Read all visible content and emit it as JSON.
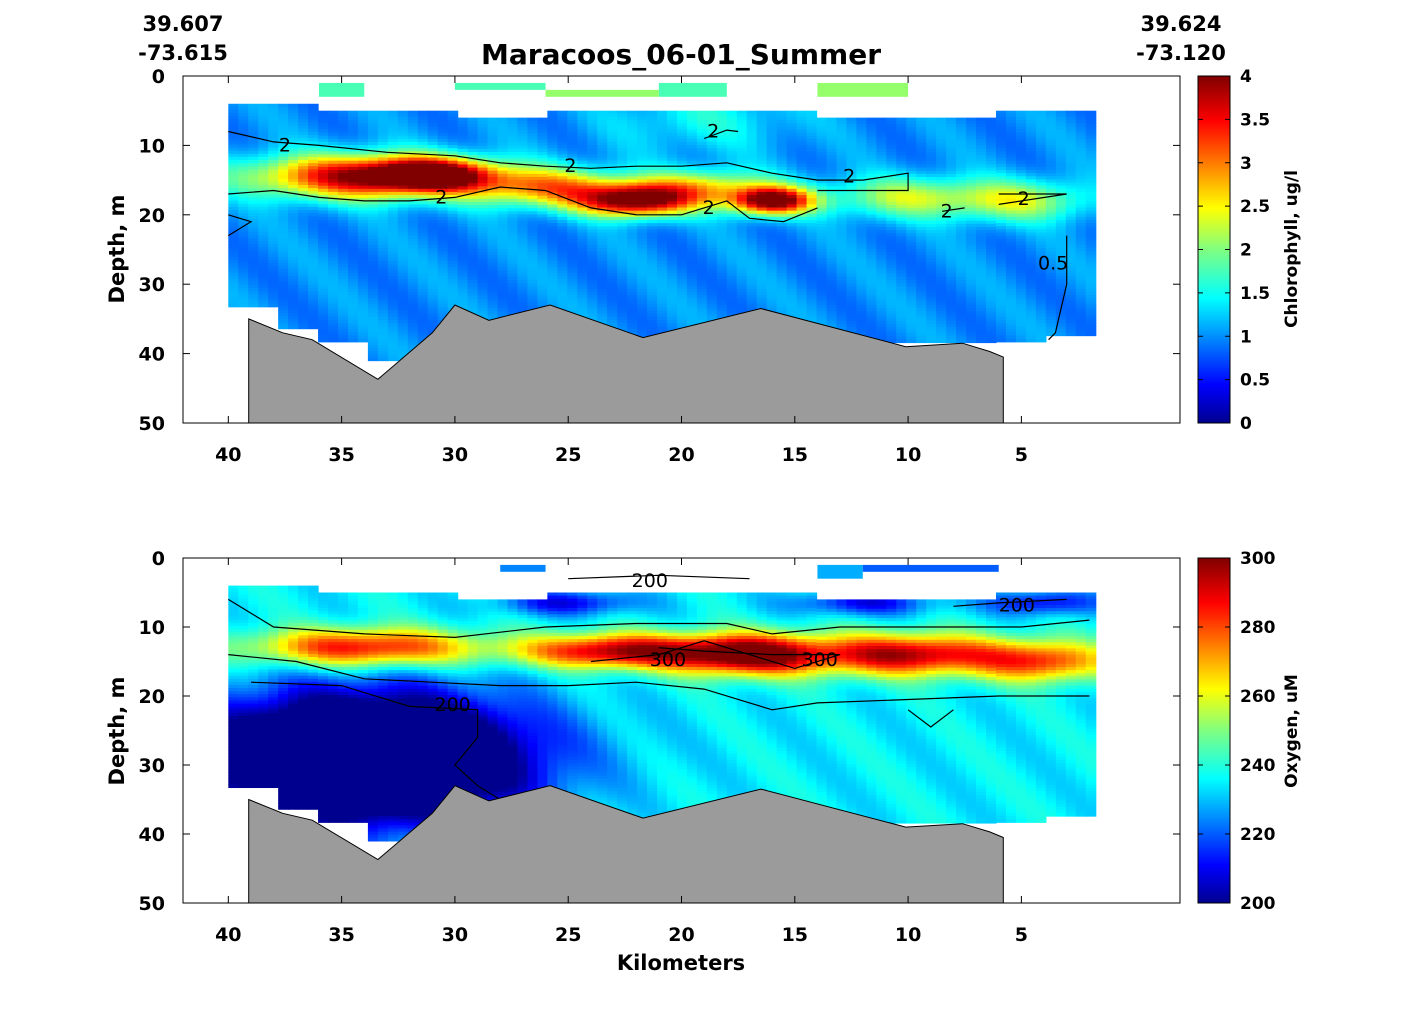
{
  "title": "Maracoos_06-01_Summer",
  "coords": {
    "left_lat": "39.607",
    "left_lon": "-73.615",
    "right_lat": "39.624",
    "right_lon": "-73.120"
  },
  "colors": {
    "bathymetry_fill": "#9b9b9b",
    "jet": [
      "#00008f",
      "#0000ff",
      "#0080ff",
      "#00ffff",
      "#80ff80",
      "#ffff00",
      "#ff8000",
      "#ff0000",
      "#800000"
    ]
  },
  "chart_data": [
    {
      "type": "heatmap",
      "xlabel": "",
      "ylabel": "Depth, m",
      "xlim": [
        42,
        -2
      ],
      "ylim": [
        0,
        50
      ],
      "x_reversed": true,
      "y_reversed": true,
      "xticks": [
        40,
        35,
        30,
        25,
        20,
        15,
        10,
        5
      ],
      "yticks": [
        0,
        10,
        20,
        30,
        40,
        50
      ],
      "colorbar": {
        "label": "Chlorophyll, ug/l",
        "range": [
          0,
          4
        ],
        "ticks": [
          "0",
          "0.5",
          "1",
          "1.5",
          "2",
          "2.5",
          "3",
          "3.5",
          "4"
        ]
      },
      "background_level": 0.25,
      "features": [
        {
          "x": 34,
          "depth": 14.5,
          "sx": 5,
          "sy": 3.2,
          "value": 0.7
        },
        {
          "x": 31,
          "depth": 14.2,
          "sx": 2.5,
          "sy": 2.2,
          "value": 0.6
        },
        {
          "x": 26,
          "depth": 16,
          "sx": 3.5,
          "sy": 2.8,
          "value": 0.45
        },
        {
          "x": 22,
          "depth": 18,
          "sx": 2.6,
          "sy": 2.3,
          "value": 0.75
        },
        {
          "x": 16,
          "depth": 18,
          "sx": 1.8,
          "sy": 2,
          "value": 0.8
        },
        {
          "x": 19,
          "depth": 16,
          "sx": 3,
          "sy": 2.5,
          "value": 0.35
        },
        {
          "x": 10,
          "depth": 17.5,
          "sx": 3.5,
          "sy": 3,
          "value": 0.3
        },
        {
          "x": 5,
          "depth": 18,
          "sx": 3,
          "sy": 3,
          "value": 0.3
        },
        {
          "x": 19,
          "depth": 6,
          "sx": 4,
          "sy": 5,
          "value": 0.12
        }
      ],
      "contours": [
        {
          "level": "2",
          "points": [
            [
              40,
              8
            ],
            [
              38,
              9.5
            ],
            [
              36,
              10
            ],
            [
              33,
              11
            ],
            [
              30,
              11.5
            ],
            [
              28,
              12.5
            ],
            [
              26,
              13
            ],
            [
              24,
              13.3
            ],
            [
              22,
              13
            ],
            [
              20,
              13
            ],
            [
              18,
              12.5
            ],
            [
              16,
              14
            ],
            [
              14,
              15
            ],
            [
              12,
              15
            ],
            [
              10,
              14
            ],
            [
              10,
              16.5
            ],
            [
              14,
              16.5
            ]
          ]
        },
        {
          "level": "2",
          "points": [
            [
              40,
              17
            ],
            [
              38,
              16.5
            ],
            [
              36,
              17.5
            ],
            [
              34,
              18
            ],
            [
              32,
              18
            ],
            [
              30,
              17.5
            ],
            [
              28,
              16
            ],
            [
              26,
              16.5
            ],
            [
              24,
              19
            ],
            [
              22,
              20
            ],
            [
              20,
              20
            ],
            [
              18.5,
              18.5
            ],
            [
              18,
              18
            ],
            [
              17,
              20.5
            ],
            [
              15.5,
              21
            ],
            [
              14,
              19
            ]
          ]
        },
        {
          "level": "2",
          "points": [
            [
              8.5,
              19.5
            ],
            [
              7.5,
              19
            ]
          ]
        },
        {
          "level": "2",
          "points": [
            [
              6,
              17
            ],
            [
              3,
              17
            ],
            [
              6,
              18.5
            ]
          ]
        },
        {
          "level": "2",
          "points": [
            [
              19,
              9
            ],
            [
              18,
              7.8
            ],
            [
              17.5,
              8
            ]
          ]
        },
        {
          "level": "0.5",
          "points": [
            [
              3,
              23
            ],
            [
              3,
              30
            ],
            [
              3.5,
              37
            ],
            [
              3.8,
              38
            ]
          ]
        },
        {
          "level": "",
          "points": [
            [
              40,
              20
            ],
            [
              39,
              21
            ],
            [
              40,
              23
            ]
          ]
        }
      ],
      "contour_labels": [
        {
          "text": "2",
          "x": 37.5,
          "depth": 10
        },
        {
          "text": "2",
          "x": 30.6,
          "depth": 17.5
        },
        {
          "text": "2",
          "x": 24.9,
          "depth": 13
        },
        {
          "text": "2",
          "x": 12.6,
          "depth": 14.5
        },
        {
          "text": "2",
          "x": 18.8,
          "depth": 19
        },
        {
          "text": "2",
          "x": 18.6,
          "depth": 8
        },
        {
          "text": "2",
          "x": 8.3,
          "depth": 19.5
        },
        {
          "text": "2",
          "x": 4.9,
          "depth": 17.7
        },
        {
          "text": "0.5",
          "x": 3.6,
          "depth": 27
        }
      ]
    },
    {
      "type": "heatmap",
      "xlabel": "Kilometers",
      "ylabel": "Depth, m",
      "xlim": [
        42,
        -2
      ],
      "ylim": [
        0,
        50
      ],
      "x_reversed": true,
      "y_reversed": true,
      "xticks": [
        40,
        35,
        30,
        25,
        20,
        15,
        10,
        5
      ],
      "yticks": [
        0,
        10,
        20,
        30,
        40,
        50
      ],
      "colorbar": {
        "label": "Oxygen, uM",
        "range": [
          200,
          300
        ],
        "ticks": [
          "200",
          "220",
          "240",
          "260",
          "280",
          "300"
        ]
      },
      "background_level": 0.35,
      "features": [
        {
          "x": 34,
          "depth": 13,
          "sx": 5,
          "sy": 2.8,
          "value": 0.55
        },
        {
          "x": 23,
          "depth": 13.5,
          "sx": 4,
          "sy": 2.5,
          "value": 0.6
        },
        {
          "x": 17,
          "depth": 14,
          "sx": 3.5,
          "sy": 3,
          "value": 0.7
        },
        {
          "x": 10,
          "depth": 14,
          "sx": 4,
          "sy": 3,
          "value": 0.6
        },
        {
          "x": 4,
          "depth": 15,
          "sx": 3,
          "sy": 3,
          "value": 0.45
        },
        {
          "x": 34,
          "depth": 29,
          "sx": 7,
          "sy": 9,
          "value": -0.9
        },
        {
          "x": 25,
          "depth": 6.5,
          "sx": 3,
          "sy": 1.8,
          "value": -0.25
        },
        {
          "x": 12,
          "depth": 6.5,
          "sx": 3,
          "sy": 1.8,
          "value": -0.25
        },
        {
          "x": 4,
          "depth": 6.5,
          "sx": 2.5,
          "sy": 1.8,
          "value": -0.25
        }
      ],
      "contours": [
        {
          "level": "300",
          "points": [
            [
              24,
              15
            ],
            [
              21,
              14
            ],
            [
              19,
              12
            ],
            [
              17,
              14
            ],
            [
              15,
              16
            ],
            [
              13,
              14
            ],
            [
              16,
              14
            ],
            [
              19,
              13.5
            ],
            [
              21,
              13
            ]
          ]
        },
        {
          "level": "",
          "points": [
            [
              40,
              6
            ],
            [
              38,
              10
            ],
            [
              34,
              11
            ],
            [
              30,
              11.5
            ],
            [
              26,
              10
            ],
            [
              22,
              9.5
            ],
            [
              18,
              9.5
            ],
            [
              16,
              11
            ],
            [
              13,
              10
            ],
            [
              10,
              10
            ],
            [
              5,
              10
            ],
            [
              2,
              9
            ]
          ]
        },
        {
          "level": "",
          "points": [
            [
              40,
              14
            ],
            [
              37,
              15
            ],
            [
              34,
              17.5
            ],
            [
              31,
              18
            ],
            [
              28,
              18.5
            ],
            [
              25,
              18.5
            ],
            [
              22,
              18
            ],
            [
              19,
              19
            ],
            [
              16,
              22
            ],
            [
              14,
              21
            ],
            [
              10,
              20.5
            ],
            [
              6,
              20
            ],
            [
              2,
              20
            ]
          ]
        },
        {
          "level": "200",
          "points": [
            [
              39,
              18
            ],
            [
              35,
              18.5
            ],
            [
              32,
              21.5
            ],
            [
              29,
              22
            ],
            [
              29,
              26
            ],
            [
              30,
              30
            ],
            [
              29,
              33
            ],
            [
              28,
              35
            ]
          ]
        },
        {
          "level": "200",
          "points": [
            [
              25,
              3
            ],
            [
              21,
              2.5
            ],
            [
              17,
              3
            ]
          ]
        },
        {
          "level": "200",
          "points": [
            [
              8,
              7
            ],
            [
              6,
              6.5
            ],
            [
              3,
              6
            ]
          ]
        },
        {
          "level": "",
          "points": [
            [
              10,
              22
            ],
            [
              9,
              24.5
            ],
            [
              8,
              22
            ]
          ]
        }
      ],
      "contour_labels": [
        {
          "text": "300",
          "x": 20.6,
          "depth": 14.8
        },
        {
          "text": "300",
          "x": 13.9,
          "depth": 14.8
        },
        {
          "text": "200",
          "x": 30.1,
          "depth": 21.3
        },
        {
          "text": "200",
          "x": 21.4,
          "depth": 3.3
        },
        {
          "text": "200",
          "x": 5.2,
          "depth": 6.9
        }
      ]
    }
  ],
  "data_mask": {
    "top": [
      [
        40,
        4
      ],
      [
        36,
        4
      ],
      [
        36,
        5
      ],
      [
        30,
        5
      ],
      [
        30,
        6
      ],
      [
        26,
        6
      ],
      [
        26,
        5
      ],
      [
        20,
        5
      ],
      [
        14,
        5
      ],
      [
        14,
        6
      ],
      [
        10,
        6
      ],
      [
        6,
        5
      ],
      [
        2,
        5
      ]
    ],
    "bottom": [
      [
        40,
        33
      ],
      [
        38,
        33
      ],
      [
        38,
        36
      ],
      [
        36,
        36
      ],
      [
        36,
        38
      ],
      [
        34,
        38
      ],
      [
        34,
        41
      ],
      [
        30,
        41
      ],
      [
        30,
        38
      ],
      [
        14,
        38
      ],
      [
        10,
        38
      ],
      [
        4,
        38
      ],
      [
        4,
        37
      ],
      [
        2,
        37
      ]
    ]
  },
  "bathymetry": [
    [
      39.1,
      50
    ],
    [
      39.1,
      35
    ],
    [
      37.6,
      37
    ],
    [
      36.3,
      38
    ],
    [
      33.4,
      43.7
    ],
    [
      31,
      37
    ],
    [
      30,
      33
    ],
    [
      28.5,
      35.2
    ],
    [
      25.8,
      33
    ],
    [
      21.7,
      37.7
    ],
    [
      16.5,
      33.5
    ],
    [
      10.1,
      39
    ],
    [
      7.6,
      38.5
    ],
    [
      6.4,
      39.7
    ],
    [
      5.8,
      40.5
    ],
    [
      5.8,
      50
    ]
  ],
  "chl_topstrips": [
    [
      36,
      34,
      1,
      3
    ],
    [
      30,
      26,
      1,
      2
    ],
    [
      14,
      10,
      1,
      3
    ],
    [
      21,
      18,
      1,
      3
    ],
    [
      26,
      21,
      2,
      3
    ]
  ],
  "oxy_topstrips": [
    [
      28,
      26,
      1,
      2
    ],
    [
      14,
      12,
      1,
      3
    ],
    [
      12,
      6,
      1,
      2
    ]
  ]
}
